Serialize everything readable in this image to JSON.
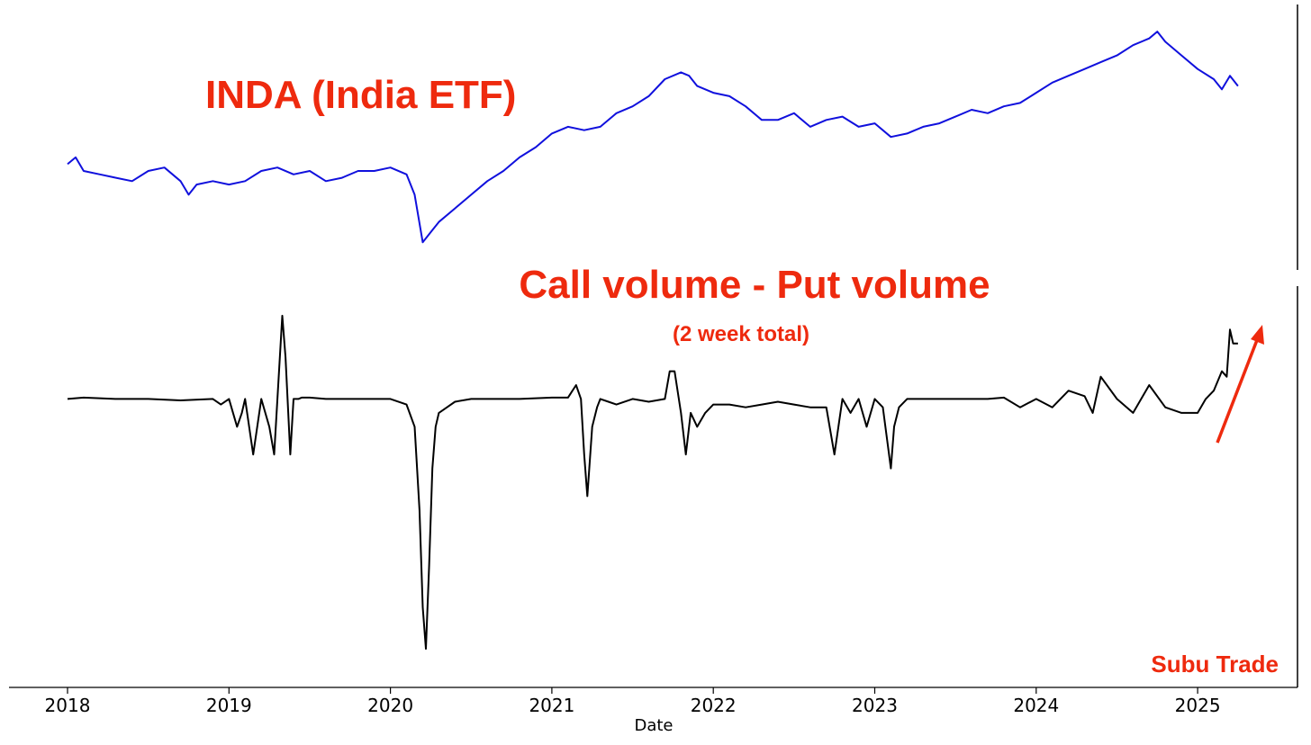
{
  "chart_data": [
    {
      "type": "line",
      "title": "INDA (India ETF)",
      "xlabel": "Date",
      "ylabel": "",
      "xlim": [
        2018.0,
        2025.3
      ],
      "ylim": [
        22,
        58
      ],
      "color": "#1010dd",
      "series": [
        {
          "x": [
            2018.0,
            2018.05,
            2018.1,
            2018.2,
            2018.3,
            2018.4,
            2018.5,
            2018.6,
            2018.7,
            2018.75,
            2018.8,
            2018.9,
            2019.0,
            2019.1,
            2019.2,
            2019.3,
            2019.4,
            2019.5,
            2019.6,
            2019.7,
            2019.8,
            2019.9,
            2020.0,
            2020.1,
            2020.15,
            2020.2,
            2020.25,
            2020.3,
            2020.4,
            2020.5,
            2020.6,
            2020.7,
            2020.8,
            2020.9,
            2021.0,
            2021.1,
            2021.2,
            2021.3,
            2021.4,
            2021.5,
            2021.6,
            2021.7,
            2021.8,
            2021.85,
            2021.9,
            2022.0,
            2022.1,
            2022.2,
            2022.3,
            2022.4,
            2022.5,
            2022.6,
            2022.7,
            2022.8,
            2022.9,
            2023.0,
            2023.1,
            2023.2,
            2023.3,
            2023.4,
            2023.5,
            2023.6,
            2023.7,
            2023.8,
            2023.9,
            2024.0,
            2024.1,
            2024.2,
            2024.3,
            2024.4,
            2024.5,
            2024.6,
            2024.7,
            2024.75,
            2024.8,
            2024.9,
            2025.0,
            2025.1,
            2025.15,
            2025.2,
            2025.25
          ],
          "y": [
            36.5,
            37.5,
            35.5,
            35,
            34.5,
            34,
            35.5,
            36,
            34,
            32,
            33.5,
            34,
            33.5,
            34,
            35.5,
            36,
            35,
            35.5,
            34,
            34.5,
            35.5,
            35.5,
            36,
            35,
            32,
            25,
            26.5,
            28,
            30,
            32,
            34,
            35.5,
            37.5,
            39,
            41,
            42,
            41.5,
            42,
            44,
            45,
            46.5,
            49,
            50,
            49.5,
            48,
            47,
            46.5,
            45,
            43,
            43,
            44,
            42,
            43,
            43.5,
            42,
            42.5,
            40.5,
            41,
            42,
            42.5,
            43.5,
            44.5,
            44,
            45,
            45.5,
            47,
            48.5,
            49.5,
            50.5,
            51.5,
            52.5,
            54,
            55,
            56,
            54.5,
            52.5,
            50.5,
            49,
            47.5,
            49.5,
            48
          ]
        }
      ]
    },
    {
      "type": "line",
      "title": "Call volume - Put volume",
      "subtitle": "(2 week total)",
      "xlabel": "Date",
      "ylabel": "",
      "xlim": [
        2018.0,
        2025.3
      ],
      "ylim": [
        -100,
        40
      ],
      "color": "#000000",
      "series": [
        {
          "x": [
            2018.0,
            2018.1,
            2018.3,
            2018.5,
            2018.7,
            2018.9,
            2018.95,
            2019.0,
            2019.05,
            2019.08,
            2019.1,
            2019.15,
            2019.2,
            2019.25,
            2019.28,
            2019.3,
            2019.33,
            2019.35,
            2019.38,
            2019.4,
            2019.43,
            2019.45,
            2019.5,
            2019.6,
            2019.7,
            2019.8,
            2019.9,
            2020.0,
            2020.1,
            2020.15,
            2020.18,
            2020.2,
            2020.22,
            2020.24,
            2020.26,
            2020.28,
            2020.3,
            2020.35,
            2020.4,
            2020.5,
            2020.6,
            2020.8,
            2021.0,
            2021.1,
            2021.15,
            2021.18,
            2021.2,
            2021.22,
            2021.25,
            2021.28,
            2021.3,
            2021.35,
            2021.4,
            2021.5,
            2021.6,
            2021.7,
            2021.73,
            2021.76,
            2021.8,
            2021.83,
            2021.86,
            2021.9,
            2021.95,
            2022.0,
            2022.1,
            2022.2,
            2022.3,
            2022.4,
            2022.5,
            2022.6,
            2022.7,
            2022.75,
            2022.8,
            2022.85,
            2022.9,
            2022.95,
            2023.0,
            2023.05,
            2023.1,
            2023.12,
            2023.15,
            2023.2,
            2023.3,
            2023.5,
            2023.7,
            2023.8,
            2023.9,
            2024.0,
            2024.1,
            2024.2,
            2024.3,
            2024.35,
            2024.4,
            2024.5,
            2024.6,
            2024.7,
            2024.8,
            2024.9,
            2025.0,
            2025.05,
            2025.1,
            2025.15,
            2025.18,
            2025.2,
            2025.22,
            2025.25
          ],
          "y": [
            0,
            0.5,
            0,
            0,
            -0.5,
            0,
            -2,
            0,
            -10,
            -5,
            0,
            -20,
            0,
            -10,
            -20,
            0,
            30,
            15,
            -20,
            0,
            0,
            0.5,
            0.5,
            0,
            0,
            0,
            0,
            0,
            -2,
            -10,
            -40,
            -75,
            -90,
            -60,
            -25,
            -10,
            -5,
            -3,
            -1,
            0,
            0,
            0,
            0.5,
            0.5,
            5,
            0,
            -20,
            -35,
            -10,
            -3,
            0,
            -1,
            -2,
            0,
            -1,
            0,
            10,
            10,
            -5,
            -20,
            -5,
            -10,
            -5,
            -2,
            -2,
            -3,
            -2,
            -1,
            -2,
            -3,
            -3,
            -20,
            0,
            -5,
            0,
            -10,
            0,
            -3,
            -25,
            -10,
            -3,
            0,
            0,
            0,
            0,
            0.5,
            -3,
            0,
            -3,
            3,
            1,
            -5,
            8,
            0,
            -5,
            5,
            -3,
            -5,
            -5,
            0,
            3,
            10,
            8,
            25,
            20,
            20
          ]
        }
      ]
    }
  ],
  "x_axis": {
    "label": "Date",
    "ticks": [
      "2018",
      "2019",
      "2020",
      "2021",
      "2022",
      "2023",
      "2024",
      "2025"
    ]
  },
  "annotations": {
    "top_title": "INDA (India ETF)",
    "bottom_title": "Call volume - Put volume",
    "bottom_subtitle": "(2 week total)",
    "watermark": "Subu Trade",
    "accent_color": "#ee2a0e"
  }
}
